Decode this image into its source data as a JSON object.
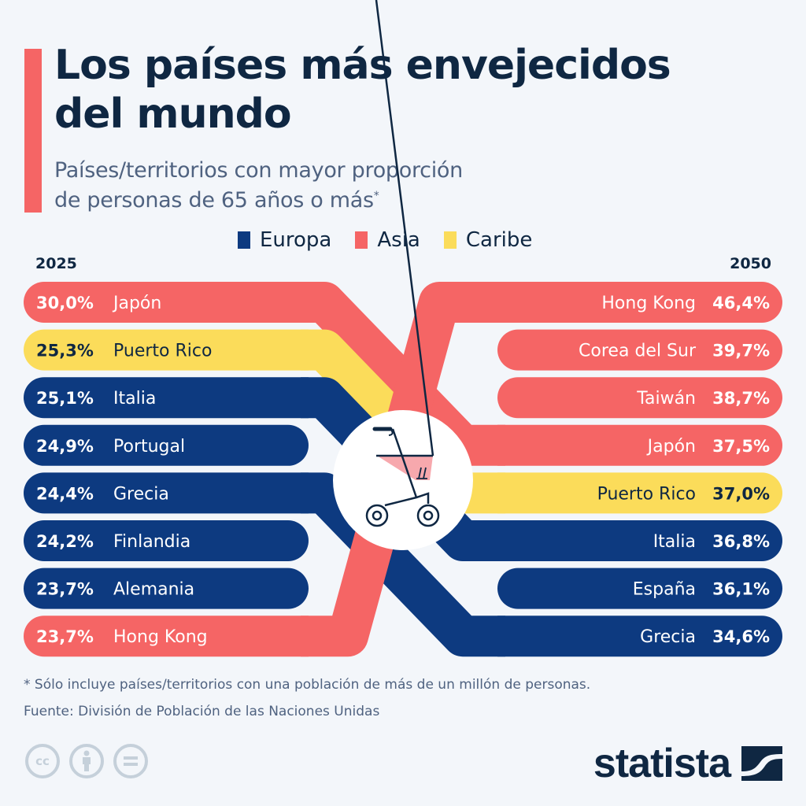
{
  "header": {
    "title_line1": "Los países más envejecidos",
    "title_line2": "del mundo",
    "subtitle_line1": "Países/territorios con mayor proporción",
    "subtitle_line2": "de personas de 65 años o más",
    "subtitle_mark": "*"
  },
  "colors": {
    "Europa": "#0d3a80",
    "Asia": "#f56565",
    "Caribe": "#fbdc5a",
    "accent": "#f56565",
    "text_dark": "#0f2742",
    "text_muted": "#4f6280"
  },
  "legend": [
    {
      "label": "Europa",
      "region": "Europa"
    },
    {
      "label": "Asia",
      "region": "Asia"
    },
    {
      "label": "Caribe",
      "region": "Caribe"
    }
  ],
  "chart_data": {
    "type": "table",
    "title": "Los países más envejecidos del mundo",
    "subtitle": "Países/territorios con mayor proporción de personas de 65 años o más",
    "unit": "% de la población de 65 años o más",
    "left_label": "2025",
    "right_label": "2050",
    "left": [
      {
        "country": "Japón",
        "value": 30.0,
        "label": "30,0%",
        "region": "Asia"
      },
      {
        "country": "Puerto Rico",
        "value": 25.3,
        "label": "25,3%",
        "region": "Caribe"
      },
      {
        "country": "Italia",
        "value": 25.1,
        "label": "25,1%",
        "region": "Europa"
      },
      {
        "country": "Portugal",
        "value": 24.9,
        "label": "24,9%",
        "region": "Europa"
      },
      {
        "country": "Grecia",
        "value": 24.4,
        "label": "24,4%",
        "region": "Europa"
      },
      {
        "country": "Finlandia",
        "value": 24.2,
        "label": "24,2%",
        "region": "Europa"
      },
      {
        "country": "Alemania",
        "value": 23.7,
        "label": "23,7%",
        "region": "Europa"
      },
      {
        "country": "Hong Kong",
        "value": 23.7,
        "label": "23,7%",
        "region": "Asia"
      }
    ],
    "right": [
      {
        "country": "Hong Kong",
        "value": 46.4,
        "label": "46,4%",
        "region": "Asia"
      },
      {
        "country": "Corea del Sur",
        "value": 39.7,
        "label": "39,7%",
        "region": "Asia"
      },
      {
        "country": "Taiwán",
        "value": 38.7,
        "label": "38,7%",
        "region": "Asia"
      },
      {
        "country": "Japón",
        "value": 37.5,
        "label": "37,5%",
        "region": "Asia"
      },
      {
        "country": "Puerto Rico",
        "value": 37.0,
        "label": "37,0%",
        "region": "Caribe"
      },
      {
        "country": "Italia",
        "value": 36.8,
        "label": "36,8%",
        "region": "Europa"
      },
      {
        "country": "España",
        "value": 36.1,
        "label": "36,1%",
        "region": "Europa"
      },
      {
        "country": "Grecia",
        "value": 34.6,
        "label": "34,6%",
        "region": "Europa"
      }
    ],
    "connections": [
      {
        "country": "Japón",
        "from_rank": 1,
        "to_rank": 4
      },
      {
        "country": "Puerto Rico",
        "from_rank": 2,
        "to_rank": 5
      },
      {
        "country": "Italia",
        "from_rank": 3,
        "to_rank": 6
      },
      {
        "country": "Grecia",
        "from_rank": 5,
        "to_rank": 8
      },
      {
        "country": "Hong Kong",
        "from_rank": 8,
        "to_rank": 1
      }
    ]
  },
  "center_icon": "rollator-walker-icon",
  "footer": {
    "note": "* Sólo incluye países/territorios con una población de más de un millón de personas.",
    "source": "Fuente: División de Población de las Naciones Unidas",
    "license_icons": [
      "cc-icon",
      "attribution-icon",
      "no-derivatives-icon"
    ],
    "cc_label": "cc",
    "brand": "statista"
  }
}
